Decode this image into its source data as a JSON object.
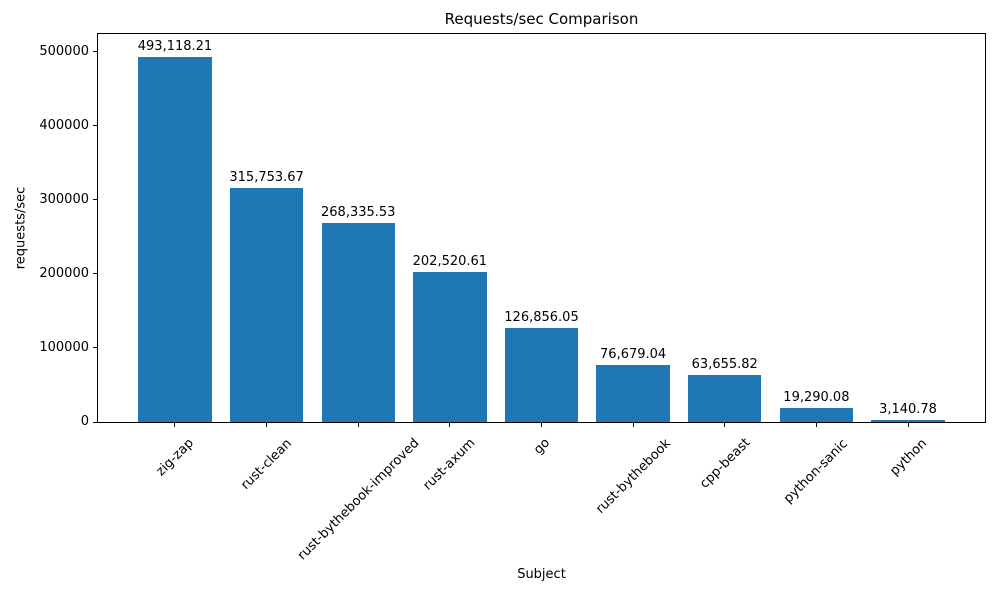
{
  "chart_data": {
    "type": "bar",
    "title": "Requests/sec Comparison",
    "xlabel": "Subject",
    "ylabel": "requests/sec",
    "categories": [
      "zig-zap",
      "rust-clean",
      "rust-bythebook-improved",
      "rust-axum",
      "go",
      "rust-bythebook",
      "cpp-beast",
      "python-sanic",
      "python"
    ],
    "values": [
      493118.21,
      315753.67,
      268335.53,
      202520.61,
      126856.05,
      76679.04,
      63655.82,
      19290.08,
      3140.78
    ],
    "bar_labels": [
      "493,118.21",
      "315,753.67",
      "268,335.53",
      "202,520.61",
      "126,856.05",
      "76,679.04",
      "63,655.82",
      "19,290.08",
      "3,140.78"
    ],
    "yticks": [
      0,
      100000,
      200000,
      300000,
      400000,
      500000
    ],
    "ytick_labels": [
      "0",
      "100000",
      "200000",
      "300000",
      "400000",
      "500000"
    ],
    "ylim": [
      0,
      524000
    ],
    "x_tick_rotation_deg": 45,
    "grid": false,
    "legend": "none",
    "bar_color": "#1f77b4",
    "axis_color": "#000000",
    "text_color": "#000000",
    "background_color": "#ffffff"
  }
}
